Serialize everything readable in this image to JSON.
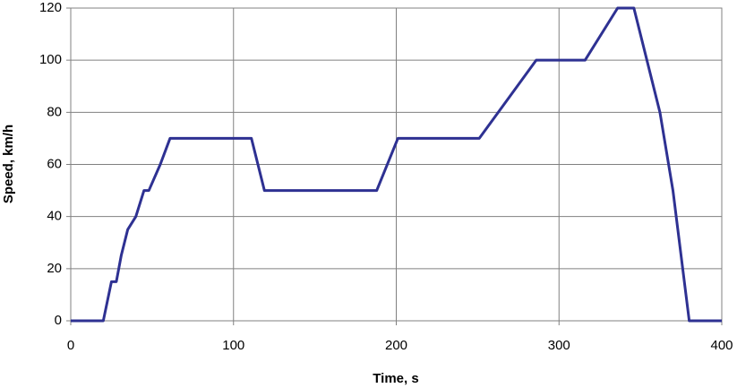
{
  "chart_data": {
    "type": "line",
    "x_label": "Time, s",
    "y_label": "Speed, km/h",
    "x": [
      0,
      20,
      25,
      28,
      31,
      35,
      40,
      45,
      48,
      55,
      61,
      111,
      119,
      188,
      201,
      251,
      286,
      316,
      336,
      346,
      362,
      370,
      380,
      400
    ],
    "series": [
      {
        "color": "#2e3192",
        "values": [
          0,
          0,
          15,
          15,
          25,
          35,
          40,
          50,
          50,
          60,
          70,
          70,
          50,
          50,
          70,
          70,
          100,
          100,
          120,
          120,
          80,
          50,
          0,
          0
        ]
      }
    ],
    "xlim": [
      0,
      400
    ],
    "xticks": [
      0,
      100,
      200,
      300,
      400
    ],
    "ylim": [
      0,
      120
    ],
    "yticks": [
      0,
      20,
      40,
      60,
      80,
      100,
      120
    ],
    "grid": true
  }
}
